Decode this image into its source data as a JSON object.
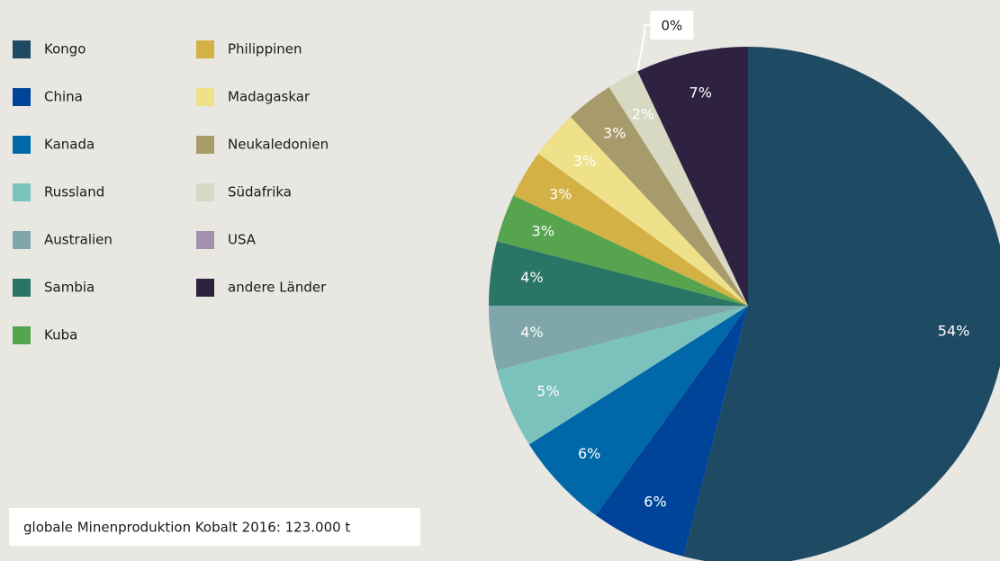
{
  "chart_data": {
    "type": "pie",
    "categories": [
      "Kongo",
      "China",
      "Kanada",
      "Russland",
      "Australien",
      "Sambia",
      "Kuba",
      "Philippinen",
      "Madagaskar",
      "Neukaledonien",
      "Südafrika",
      "USA",
      "andere Länder"
    ],
    "values": [
      54,
      6,
      6,
      5,
      4,
      4,
      3,
      3,
      3,
      3,
      2,
      0,
      7
    ],
    "value_labels": [
      "54%",
      "6%",
      "6%",
      "5%",
      "4%",
      "4%",
      "3%",
      "3%",
      "3%",
      "3%",
      "2%",
      "0%",
      "7%"
    ],
    "colors": [
      "#1f4a63",
      "#00449a",
      "#0068a8",
      "#7bc1bc",
      "#7fa6aa",
      "#2b7566",
      "#57a44f",
      "#d4b144",
      "#efe08a",
      "#a89b6b",
      "#d8d9c2",
      "#a58fb0",
      "#2f2140"
    ],
    "footnote": "globale Minenproduktion Kobalt 2016: 123.000 t"
  }
}
